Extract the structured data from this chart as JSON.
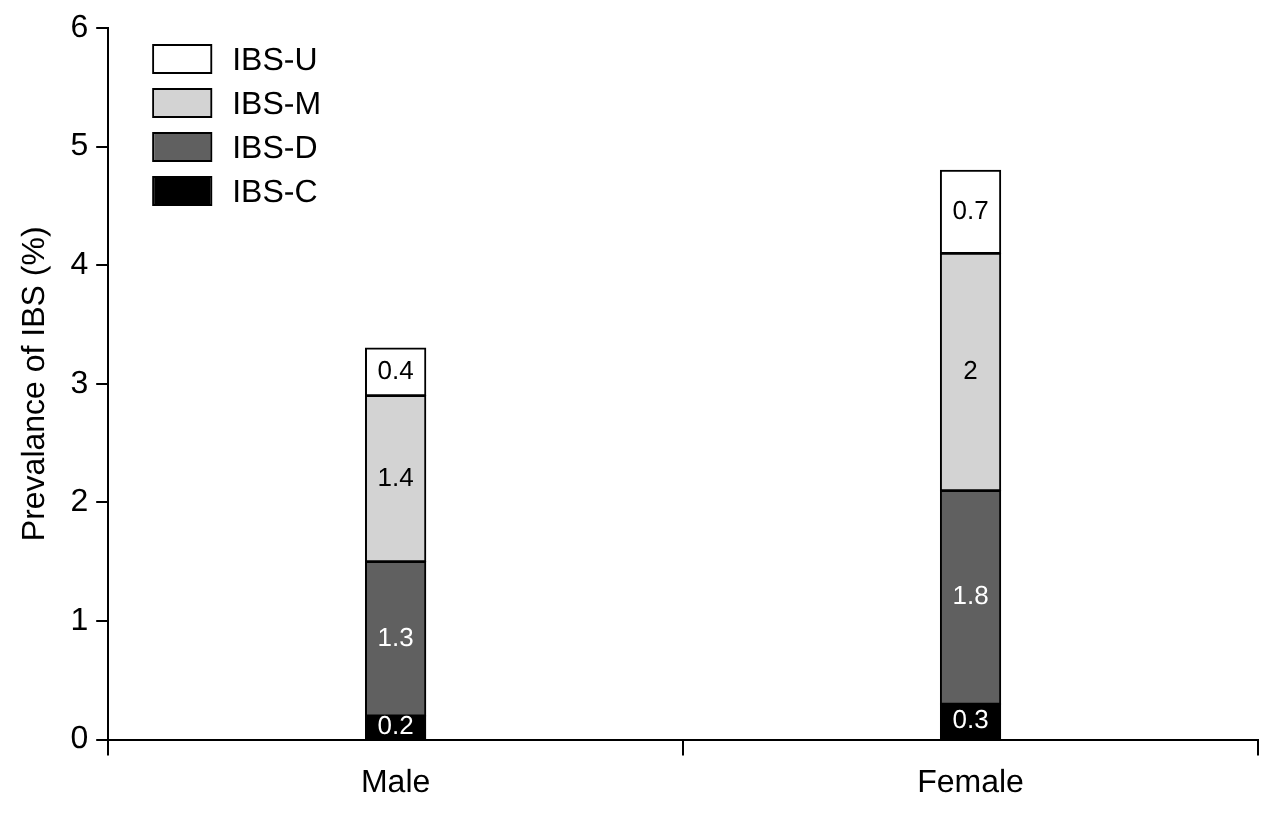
{
  "chart_data": {
    "type": "bar",
    "stacked": true,
    "ylabel": "Prevalance of IBS (%)",
    "categories": [
      "Male",
      "Female"
    ],
    "series": [
      {
        "name": "IBS-C",
        "color": "#000000",
        "values": [
          0.2,
          0.3
        ]
      },
      {
        "name": "IBS-D",
        "color": "#606060",
        "values": [
          1.3,
          1.8
        ]
      },
      {
        "name": "IBS-M",
        "color": "#d3d3d3",
        "values": [
          1.4,
          2
        ]
      },
      {
        "name": "IBS-U",
        "color": "#ffffff",
        "values": [
          0.4,
          0.7
        ]
      }
    ],
    "ylim": [
      0,
      6
    ],
    "yticks": [
      0,
      1,
      2,
      3,
      4,
      5,
      6
    ],
    "grid": false,
    "legend": "top left",
    "data_labels": true
  }
}
